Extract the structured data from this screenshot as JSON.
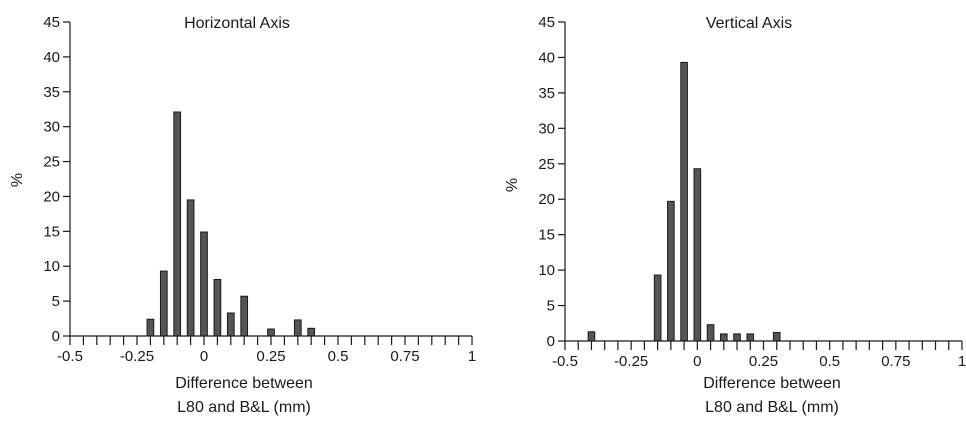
{
  "chart_data": [
    {
      "type": "bar",
      "title": "Horizontal Axis",
      "xlabel_line1": "Difference between",
      "xlabel_line2": "L80 and B&L (mm)",
      "ylabel": "%",
      "xlim": [
        -0.5,
        1
      ],
      "ylim": [
        0,
        45
      ],
      "xticks": [
        "-0.5",
        "-0.25",
        "0",
        "0.25",
        "0.5",
        "0.75",
        "1"
      ],
      "yticks": [
        "0",
        "5",
        "10",
        "15",
        "20",
        "25",
        "30",
        "35",
        "40",
        "45"
      ],
      "bar_width": 0.025,
      "bar_color": "#555555",
      "x": [
        -0.2,
        -0.15,
        -0.1,
        -0.05,
        0.0,
        0.05,
        0.1,
        0.15,
        0.25,
        0.35,
        0.4
      ],
      "values": [
        2.4,
        9.3,
        32.1,
        19.5,
        14.9,
        8.1,
        3.3,
        5.7,
        1.0,
        2.3,
        1.1
      ]
    },
    {
      "type": "bar",
      "title": "Vertical Axis",
      "xlabel_line1": "Difference between",
      "xlabel_line2": "L80 and B&L (mm)",
      "ylabel": "%",
      "xlim": [
        -0.5,
        1
      ],
      "ylim": [
        0,
        45
      ],
      "xticks": [
        "-0.5",
        "-0.25",
        "0",
        "0.25",
        "0.5",
        "0.75",
        "1"
      ],
      "yticks": [
        "0",
        "5",
        "10",
        "15",
        "20",
        "25",
        "30",
        "35",
        "40",
        "45"
      ],
      "bar_width": 0.025,
      "bar_color": "#555555",
      "x": [
        -0.4,
        -0.15,
        -0.1,
        -0.05,
        0.0,
        0.05,
        0.1,
        0.15,
        0.2,
        0.3
      ],
      "values": [
        1.3,
        9.3,
        19.7,
        39.3,
        24.3,
        2.3,
        1.0,
        1.0,
        1.0,
        1.2
      ]
    }
  ]
}
